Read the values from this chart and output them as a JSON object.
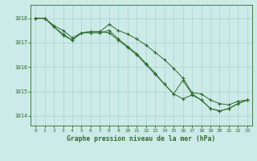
{
  "hours": [
    0,
    1,
    2,
    3,
    4,
    5,
    6,
    7,
    8,
    9,
    10,
    11,
    12,
    13,
    14,
    15,
    16,
    17,
    18,
    19,
    20,
    21,
    22,
    23
  ],
  "line1": [
    1018.0,
    1018.0,
    1017.7,
    1017.5,
    1017.2,
    1017.4,
    1017.45,
    1017.45,
    1017.75,
    1017.5,
    1017.35,
    1017.15,
    1016.9,
    1016.6,
    1016.3,
    1015.95,
    1015.55,
    1014.95,
    1014.9,
    1014.65,
    1014.5,
    1014.45,
    1014.6,
    1014.65
  ],
  "line2": [
    1018.0,
    1018.0,
    1017.65,
    1017.3,
    1017.1,
    1017.4,
    1017.4,
    1017.4,
    1017.5,
    1017.15,
    1016.85,
    1016.55,
    1016.15,
    1015.75,
    1015.3,
    1014.9,
    1015.45,
    1014.9,
    1014.65,
    1014.3,
    1014.2,
    1014.3,
    1014.5,
    1014.65
  ],
  "line3": [
    1018.0,
    1018.0,
    1017.65,
    1017.35,
    1017.1,
    1017.4,
    1017.45,
    1017.45,
    1017.4,
    1017.1,
    1016.8,
    1016.5,
    1016.1,
    1015.7,
    1015.3,
    1014.9,
    1014.7,
    1014.85,
    1014.65,
    1014.3,
    1014.2,
    1014.3,
    1014.5,
    1014.65
  ],
  "bg_color": "#cceae7",
  "grid_color": "#aad4cf",
  "line_color": "#2d6b2d",
  "xlabel": "Graphe pression niveau de la mer (hPa)",
  "ylim_min": 1013.6,
  "ylim_max": 1018.55,
  "yticks": [
    1014,
    1015,
    1016,
    1017,
    1018
  ],
  "axis_color": "#2d6b2d",
  "tick_color": "#2d6b2d"
}
